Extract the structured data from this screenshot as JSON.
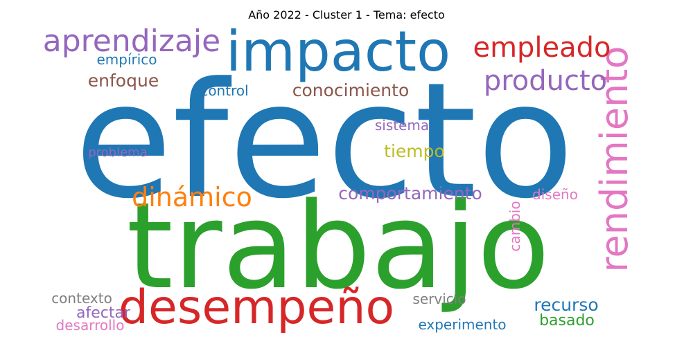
{
  "title": "Año 2022 - Cluster 1 - Tema: efecto",
  "colors": {
    "blue": "#1f77b4",
    "green": "#2ca02c",
    "red": "#d62728",
    "purple": "#9467bd",
    "orange": "#ff7f0e",
    "pink": "#e377c2",
    "brown": "#8c564b",
    "gray": "#7f7f7f",
    "olive": "#bcbd22"
  },
  "words": {
    "efecto": "efecto",
    "trabajo": "trabajo",
    "impacto": "impacto",
    "desempeno": "desempeño",
    "rendimiento": "rendimiento",
    "aprendizaje": "aprendizaje",
    "empleado": "empleado",
    "producto": "producto",
    "dinamico": "dinámico",
    "conocimiento": "conocimiento",
    "comportamiento": "comportamiento",
    "enfoque": "enfoque",
    "empirico": "empírico",
    "control": "control",
    "sistema": "sistema",
    "tiempo": "tiempo",
    "problema": "problema",
    "diseno": "diseño",
    "cambio": "cambio",
    "recurso": "recurso",
    "basado": "basado",
    "servicio": "servicio",
    "experimento": "experimento",
    "contexto": "contexto",
    "afectar": "afectar",
    "desarrollo": "desarrollo"
  }
}
